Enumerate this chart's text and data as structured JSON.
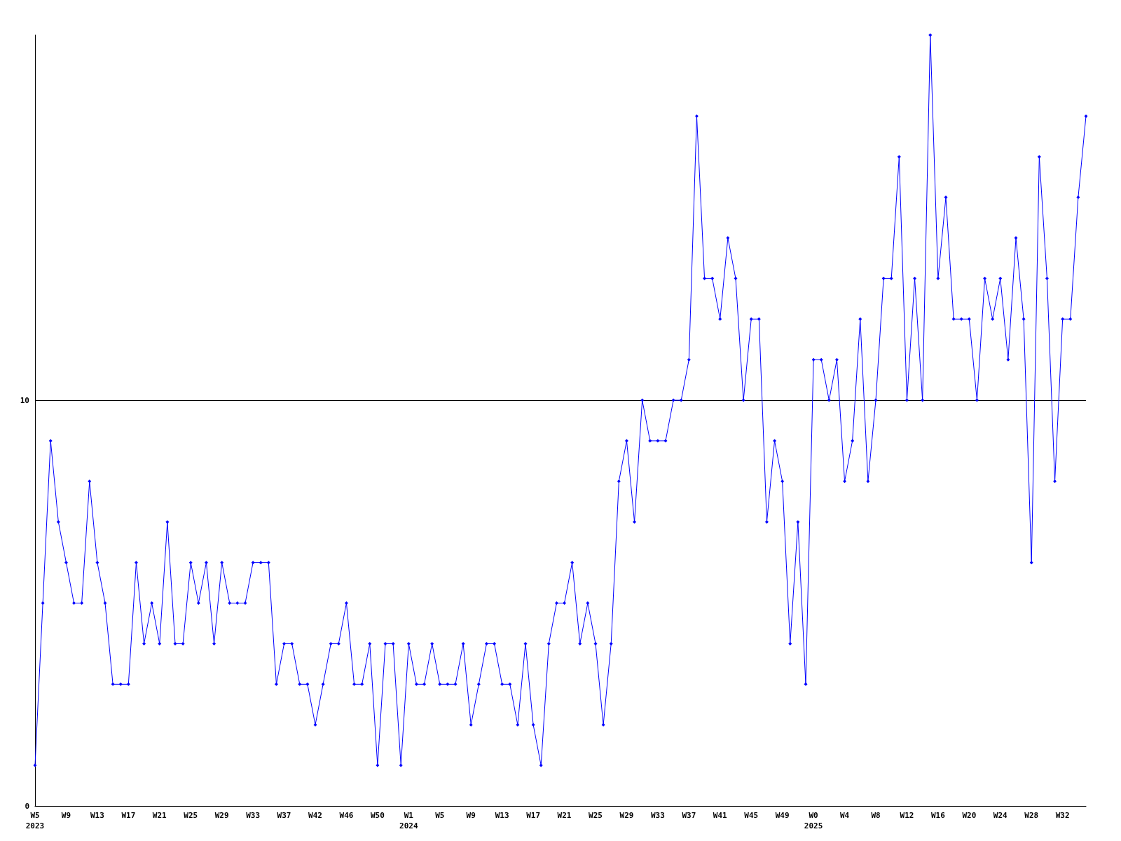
{
  "chart_data": {
    "type": "line",
    "categories": [
      "W5\n2023",
      null,
      null,
      null,
      "W9",
      null,
      null,
      null,
      "W13",
      null,
      null,
      null,
      "W17",
      null,
      null,
      null,
      "W21",
      null,
      null,
      null,
      "W25",
      null,
      null,
      null,
      "W29",
      null,
      null,
      null,
      "W33",
      null,
      null,
      null,
      "W37",
      null,
      null,
      null,
      "W42",
      null,
      null,
      null,
      "W46",
      null,
      null,
      null,
      "W50",
      null,
      null,
      null,
      "W1\n2024",
      null,
      null,
      null,
      "W5",
      null,
      null,
      null,
      "W9",
      null,
      null,
      null,
      "W13",
      null,
      null,
      null,
      "W17",
      null,
      null,
      null,
      "W21",
      null,
      null,
      null,
      "W25",
      null,
      null,
      null,
      "W29",
      null,
      null,
      null,
      "W33",
      null,
      null,
      null,
      "W37",
      null,
      null,
      null,
      "W41",
      null,
      null,
      null,
      "W45",
      null,
      null,
      null,
      "W49",
      null,
      null,
      null,
      "W0\n2025",
      null,
      null,
      null,
      "W4",
      null,
      null,
      null,
      "W8",
      null,
      null,
      null,
      "W12",
      null,
      null,
      null,
      "W16",
      null,
      null,
      null,
      "W20",
      null,
      null,
      null,
      "W24",
      null,
      null,
      null,
      "W28",
      null,
      null,
      null,
      "W32",
      null,
      null,
      null
    ],
    "series": [
      {
        "color": "#0000ff",
        "values": [
          1,
          5,
          9,
          7,
          6,
          5,
          5,
          8,
          6,
          5,
          3,
          3,
          3,
          6,
          4,
          5,
          4,
          7,
          4,
          4,
          6,
          5,
          6,
          4,
          6,
          5,
          5,
          5,
          6,
          6,
          6,
          3,
          4,
          4,
          3,
          3,
          2,
          3,
          4,
          4,
          5,
          3,
          3,
          4,
          1,
          4,
          4,
          1,
          4,
          3,
          3,
          4,
          3,
          3,
          3,
          4,
          2,
          3,
          4,
          4,
          3,
          3,
          2,
          4,
          2,
          1,
          4,
          5,
          5,
          6,
          4,
          5,
          4,
          2,
          4,
          8,
          9,
          7,
          10,
          9,
          9,
          9,
          10,
          10,
          11,
          17,
          13,
          13,
          12,
          14,
          13,
          10,
          12,
          12,
          7,
          9,
          8,
          4,
          7,
          3,
          11,
          11,
          10,
          11,
          8,
          9,
          12,
          8,
          10,
          13,
          13,
          16,
          10,
          13,
          10,
          19,
          13,
          15,
          12,
          12,
          12,
          10,
          13,
          12,
          13,
          11,
          14,
          12,
          6,
          16,
          13,
          8,
          12,
          12,
          15,
          17
        ]
      }
    ],
    "ylim": [
      0,
      19
    ],
    "yticks": [
      0,
      10
    ],
    "grid": "y",
    "marker": "diamond",
    "line_style": "solid"
  }
}
